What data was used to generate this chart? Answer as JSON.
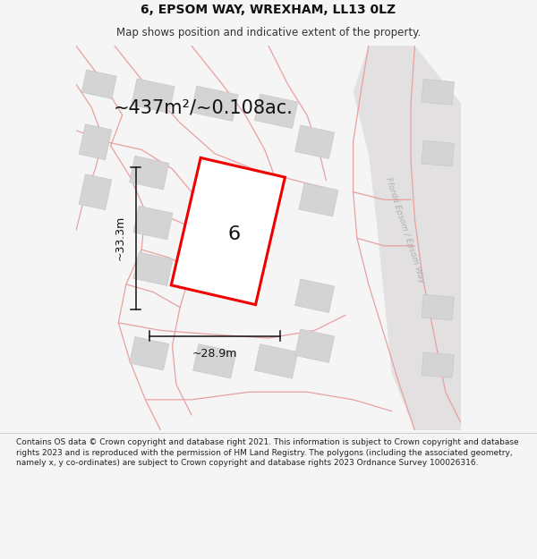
{
  "title": "6, EPSOM WAY, WREXHAM, LL13 0LZ",
  "subtitle": "Map shows position and indicative extent of the property.",
  "footer": "Contains OS data © Crown copyright and database right 2021. This information is subject to Crown copyright and database rights 2023 and is reproduced with the permission of HM Land Registry. The polygons (including the associated geometry, namely x, y co-ordinates) are subject to Crown copyright and database rights 2023 Ordnance Survey 100026316.",
  "area_label": "~437m²/~0.108ac.",
  "number_label": "6",
  "width_label": "~28.9m",
  "height_label": "~33.3m",
  "bg_color": "#f5f5f5",
  "map_bg": "#ebebeb",
  "plot_line_color": "#ee0000",
  "plot_fill_color": "#ffffff",
  "bg_building_color": "#d4d4d4",
  "bg_building_edge": "#c8c8c8",
  "bg_road_line_color": "#e8a0a0",
  "road_label_color": "#b0b0b0",
  "title_fontsize": 10,
  "subtitle_fontsize": 8.5,
  "footer_fontsize": 6.5,
  "area_fontsize": 15,
  "number_fontsize": 16,
  "dim_fontsize": 9
}
